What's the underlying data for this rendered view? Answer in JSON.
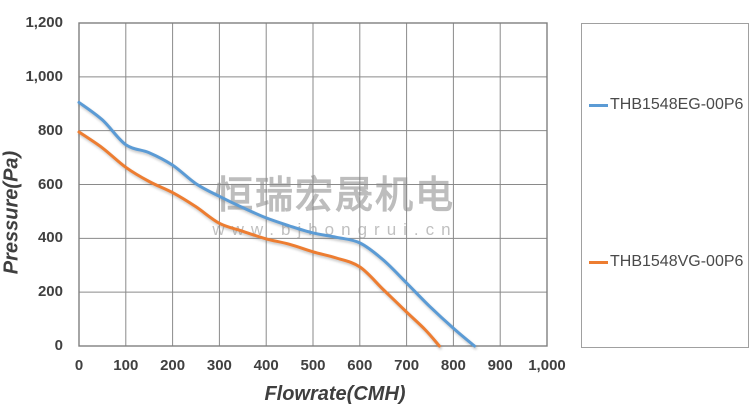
{
  "watermark": {
    "line1": "恒瑞宏晟机电",
    "line2": "www.bjhongrui.cn"
  },
  "chart_data": {
    "type": "line",
    "title": "",
    "xlabel": "Flowrate(CMH)",
    "ylabel": "Pressure(Pa)",
    "xlim": [
      0,
      1000
    ],
    "ylim": [
      0,
      1200
    ],
    "xticks": [
      0,
      100,
      200,
      300,
      400,
      500,
      600,
      700,
      800,
      900,
      1000
    ],
    "yticks": [
      0,
      200,
      400,
      600,
      800,
      1000,
      1200
    ],
    "grid": true,
    "legend_position": "right",
    "series": [
      {
        "name": "THB1548EG-00P6",
        "color": "#5B9BD5",
        "points": [
          [
            0,
            905
          ],
          [
            50,
            840
          ],
          [
            100,
            748
          ],
          [
            150,
            718
          ],
          [
            200,
            672
          ],
          [
            250,
            603
          ],
          [
            300,
            556
          ],
          [
            350,
            514
          ],
          [
            400,
            476
          ],
          [
            450,
            446
          ],
          [
            500,
            420
          ],
          [
            550,
            404
          ],
          [
            600,
            383
          ],
          [
            650,
            320
          ],
          [
            700,
            234
          ],
          [
            750,
            146
          ],
          [
            800,
            66
          ],
          [
            845,
            0
          ]
        ]
      },
      {
        "name": "THB1548VG-00P6",
        "color": "#ED7D31",
        "points": [
          [
            0,
            795
          ],
          [
            50,
            736
          ],
          [
            100,
            664
          ],
          [
            150,
            611
          ],
          [
            200,
            570
          ],
          [
            250,
            517
          ],
          [
            300,
            456
          ],
          [
            350,
            426
          ],
          [
            400,
            398
          ],
          [
            450,
            378
          ],
          [
            500,
            350
          ],
          [
            550,
            327
          ],
          [
            600,
            294
          ],
          [
            650,
            210
          ],
          [
            700,
            126
          ],
          [
            740,
            60
          ],
          [
            770,
            0
          ]
        ]
      }
    ]
  },
  "colors": {
    "accent_blue": "#5B9BD5",
    "accent_orange": "#ED7D31",
    "gridline": "#8a8a8a",
    "plot_border": "#7f7f7f",
    "axis_text": "#404040",
    "legend_border": "#a0a0a0",
    "watermark_gray": "#9e9e9e"
  }
}
